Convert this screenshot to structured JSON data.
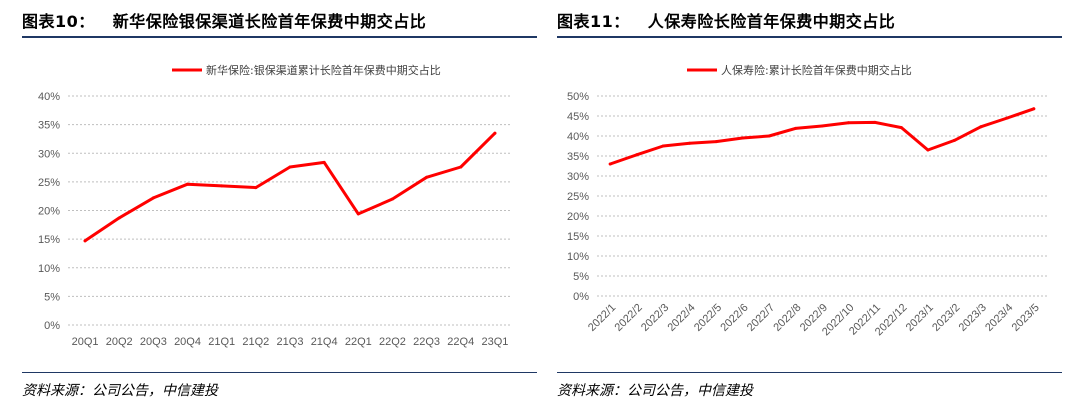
{
  "chart_data": [
    {
      "id": "fig10",
      "type": "line",
      "figure_label": "图表10：",
      "title": "新华保险银保渠道长险首年保费中期交占比",
      "legend": "新华保险:银保渠道累计长险首年保费中期交占比",
      "categories": [
        "20Q1",
        "20Q2",
        "20Q3",
        "20Q4",
        "21Q1",
        "21Q2",
        "21Q3",
        "21Q4",
        "22Q1",
        "22Q2",
        "22Q3",
        "22Q4",
        "23Q1"
      ],
      "series": [
        {
          "name": "新华保险:银保渠道累计长险首年保费中期交占比",
          "values": [
            14.7,
            18.7,
            22.2,
            24.6,
            24.3,
            24.0,
            27.6,
            28.4,
            19.4,
            22.0,
            25.8,
            27.6,
            33.5
          ]
        }
      ],
      "ylim": [
        0,
        40
      ],
      "yticks": [
        0,
        5,
        10,
        15,
        20,
        25,
        30,
        35,
        40
      ],
      "ytick_labels": [
        "0%",
        "5%",
        "10%",
        "15%",
        "20%",
        "25%",
        "30%",
        "35%",
        "40%"
      ],
      "xlabel": "",
      "ylabel": "",
      "color": "#ff0000",
      "source": "资料来源：公司公告，中信建投"
    },
    {
      "id": "fig11",
      "type": "line",
      "figure_label": "图表11：",
      "title": "人保寿险长险首年保费中期交占比",
      "legend": "人保寿险:累计长险首年保费中期交占比",
      "categories": [
        "2022/1",
        "2022/2",
        "2022/3",
        "2022/4",
        "2022/5",
        "2022/6",
        "2022/7",
        "2022/8",
        "2022/9",
        "2022/10",
        "2022/11",
        "2022/12",
        "2023/1",
        "2023/2",
        "2023/3",
        "2023/4",
        "2023/5"
      ],
      "series": [
        {
          "name": "人保寿险:累计长险首年保费中期交占比",
          "values": [
            33.0,
            35.3,
            37.5,
            38.2,
            38.6,
            39.5,
            40.0,
            41.9,
            42.5,
            43.3,
            43.4,
            42.1,
            36.5,
            38.9,
            42.3,
            44.5,
            46.8
          ]
        }
      ],
      "ylim": [
        0,
        50
      ],
      "yticks": [
        0,
        5,
        10,
        15,
        20,
        25,
        30,
        35,
        40,
        45,
        50
      ],
      "ytick_labels": [
        "0%",
        "5%",
        "10%",
        "15%",
        "20%",
        "25%",
        "30%",
        "35%",
        "40%",
        "45%",
        "50%"
      ],
      "xlabel": "",
      "ylabel": "",
      "color": "#ff0000",
      "source": "资料来源：公司公告，中信建投"
    }
  ],
  "colors": {
    "accent_rule": "#1f3864",
    "series": "#ff0000",
    "grid": "#bfbfbf"
  }
}
